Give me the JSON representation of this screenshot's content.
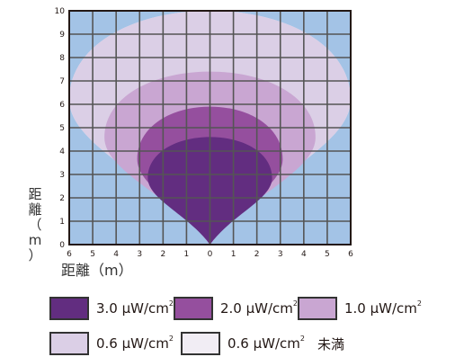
{
  "chart_data": {
    "type": "heatmap",
    "title": "",
    "xlabel": "距離（m）",
    "ylabel": "距離（m）",
    "xlim": [
      -6,
      6
    ],
    "ylim": [
      0,
      10
    ],
    "x_ticks": [
      "6",
      "5",
      "4",
      "3",
      "2",
      "1",
      "0",
      "1",
      "2",
      "3",
      "4",
      "5",
      "6"
    ],
    "y_ticks": [
      "0",
      "1",
      "2",
      "3",
      "4",
      "5",
      "6",
      "7",
      "8",
      "9",
      "10"
    ],
    "grid": true,
    "background_color": "#a3c3e6",
    "zones": [
      {
        "label": "0.6 μW/cm² 未満",
        "color": "#f1edf4",
        "max_distance_m": 10.0,
        "half_width_m": 6.0
      },
      {
        "label": "0.6 μW/cm²",
        "color": "#dbcfe6",
        "max_distance_m": 10.0,
        "half_width_m": 6.0
      },
      {
        "label": "1.0 μW/cm²",
        "color": "#c9a6d2",
        "max_distance_m": 7.4,
        "half_width_m": 4.5
      },
      {
        "label": "2.0 μW/cm²",
        "color": "#954f9e",
        "max_distance_m": 5.9,
        "half_width_m": 3.1
      },
      {
        "label": "3.0 μW/cm²",
        "color": "#622d80",
        "max_distance_m": 4.6,
        "half_width_m": 2.65
      }
    ]
  },
  "axis": {
    "ylabel_chars": [
      "距",
      "離",
      "（",
      "m",
      "）"
    ],
    "xlabel": "距離（m）"
  },
  "legend": {
    "items": [
      {
        "value": "3.0 μW/cm",
        "sup": "2",
        "color": "#622d80"
      },
      {
        "value": "2.0 μW/cm",
        "sup": "2",
        "color": "#954f9e"
      },
      {
        "value": "1.0 μW/cm",
        "sup": "2",
        "color": "#c9a6d2"
      },
      {
        "value": "0.6 μW/cm",
        "sup": "2",
        "color": "#dbcfe6"
      },
      {
        "value": "0.6 μW/cm",
        "sup": "2",
        "color": "#f1edf4",
        "suffix": "未満"
      }
    ]
  }
}
